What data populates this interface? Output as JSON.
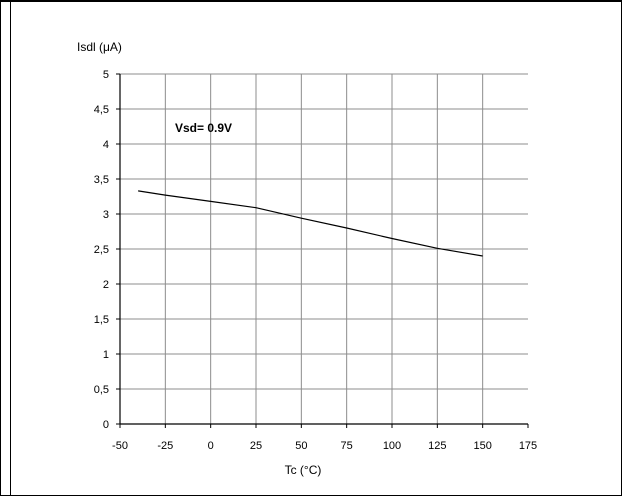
{
  "chart_data": {
    "type": "line",
    "title": "",
    "xlabel": "Tc (°C)",
    "ylabel": "Isdl (μA)",
    "xlim": [
      -50,
      175
    ],
    "ylim": [
      0,
      5
    ],
    "x_ticks": [
      -50,
      -25,
      0,
      25,
      50,
      75,
      100,
      125,
      150,
      175
    ],
    "y_ticks": [
      0,
      0.5,
      1,
      1.5,
      2,
      2.5,
      3,
      3.5,
      4,
      4.5,
      5
    ],
    "x_tick_labels": [
      "-50",
      "-25",
      "0",
      "25",
      "50",
      "75",
      "100",
      "125",
      "150",
      "175"
    ],
    "y_tick_labels": [
      "0",
      "0,5",
      "1",
      "1,5",
      "2",
      "2,5",
      "3",
      "3,5",
      "4",
      "4,5",
      "5"
    ],
    "grid": true,
    "annotation": "Vsd= 0.9V",
    "series": [
      {
        "x": [
          -40,
          -25,
          0,
          25,
          50,
          75,
          100,
          125,
          150
        ],
        "values": [
          3.33,
          3.27,
          3.18,
          3.09,
          2.94,
          2.8,
          2.65,
          2.51,
          2.4
        ]
      }
    ]
  }
}
